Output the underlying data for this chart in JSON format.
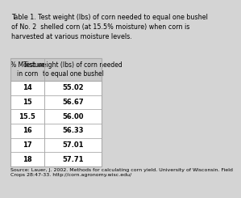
{
  "title": "Table 1. Test weight (lbs) of corn needed to equal one bushel\nof No. 2  shelled corn (at 15.5% moisture) when corn is\nharvested at various moisture levels.",
  "col1_header": "% Moisture\nin corn",
  "col2_header": "Test weight (lbs) of corn needed\nto equal one bushel",
  "rows": [
    [
      "14",
      "55.02"
    ],
    [
      "15",
      "56.67"
    ],
    [
      "15.5",
      "56.00"
    ],
    [
      "16",
      "56.33"
    ],
    [
      "17",
      "57.01"
    ],
    [
      "18",
      "57.71"
    ]
  ],
  "source": "Source: Lauer, J. 2002. Methods for calculating corn yield. University of Wisconsin. Field\nCrops 28:47-33. http://corn.agronomy.wisc.edu/",
  "bg_color": "#d4d4d4",
  "table_bg": "#ffffff",
  "header_bg": "#c8c8c8",
  "border_color": "#aaaaaa",
  "title_fontsize": 5.8,
  "header_fontsize": 5.5,
  "cell_fontsize": 6.0,
  "source_fontsize": 4.5
}
